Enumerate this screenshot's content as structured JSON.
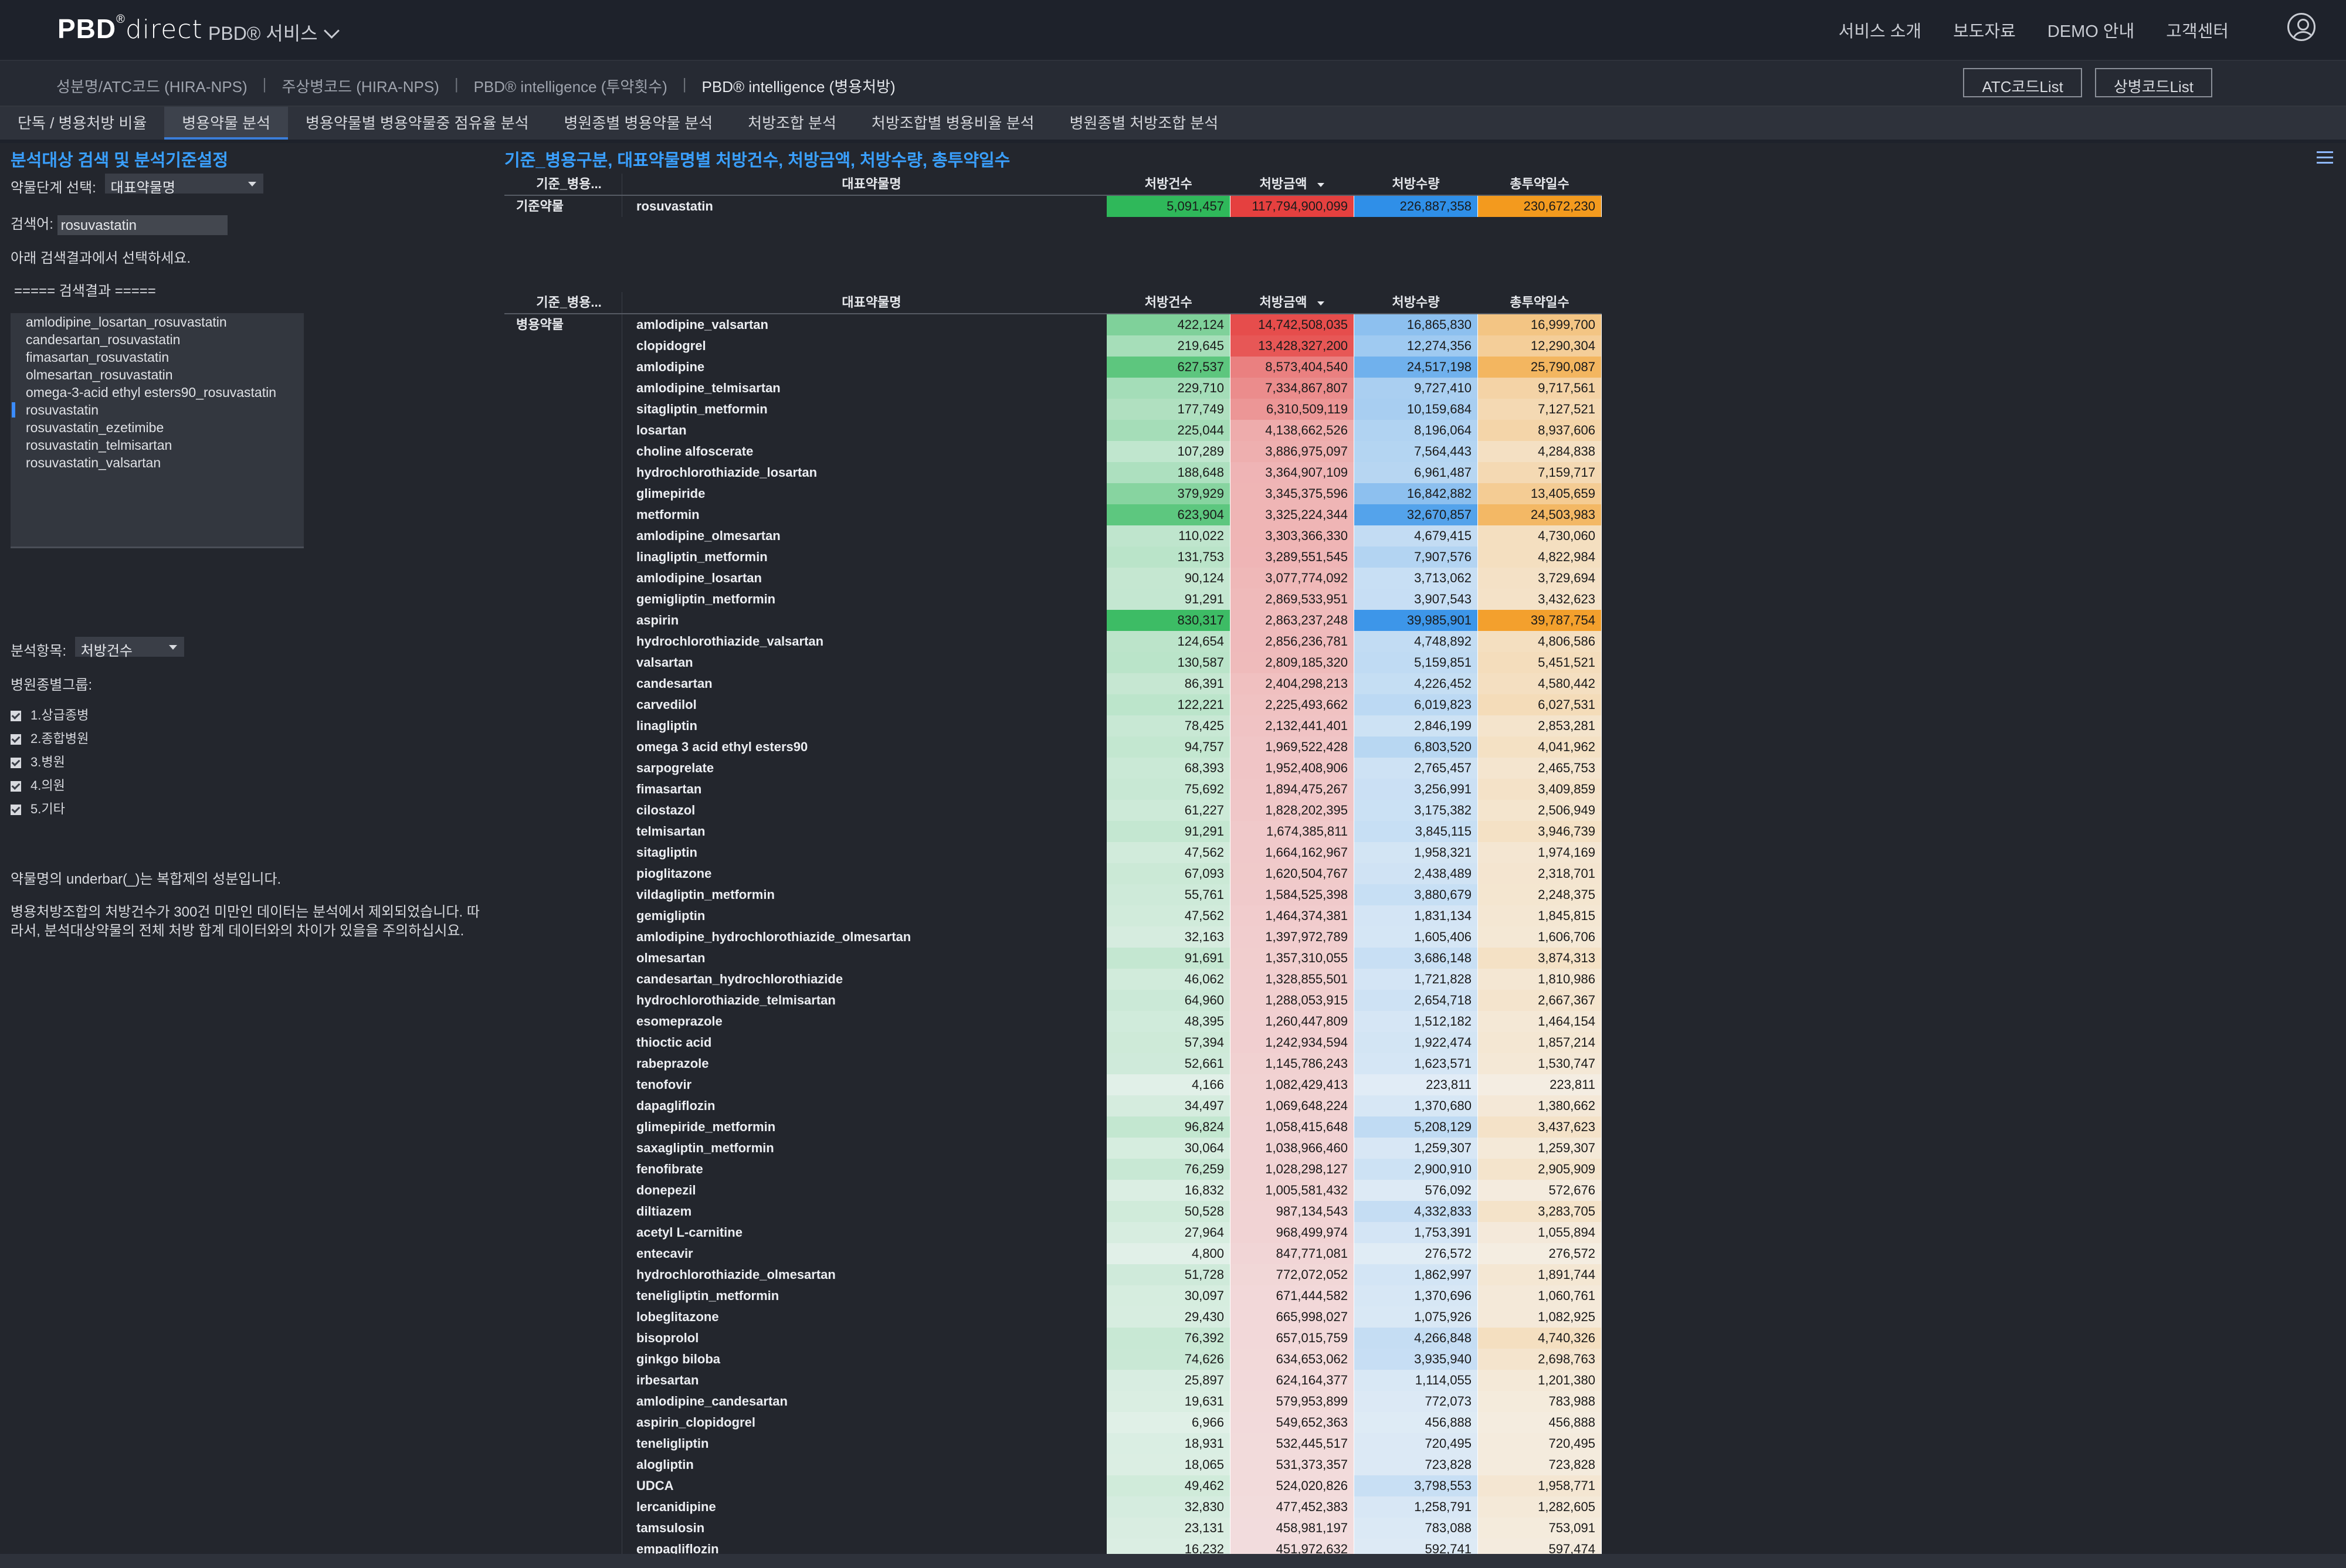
{
  "topbar": {
    "logo_brand": "PBD",
    "logo_reg": "®",
    "logo_direct": "direct",
    "service_menu": "PBD® 서비스",
    "nav": [
      "서비스 소개",
      "보도자료",
      "DEMO 안내",
      "고객센터"
    ]
  },
  "subnav": {
    "crumbs": [
      "성분명/ATC코드 (HIRA-NPS)",
      "주상병코드 (HIRA-NPS)",
      "PBD® intelligence (투약횟수)",
      "PBD® intelligence (병용처방)"
    ],
    "buttons": [
      "ATC코드List",
      "상병코드List"
    ]
  },
  "tabs": [
    "단독 / 병용처방 비율",
    "병용약물 분석",
    "병용약물별 병용약물중 점유율 분석",
    "병원종별 병용약물 분석",
    "처방조합 분석",
    "처방조합별 병용비율 분석",
    "병원종별 처방조합 분석"
  ],
  "left": {
    "title": "분석대상 검색 및 분석기준설정",
    "stage_label": "약물단계 선택:",
    "stage_value": "대표약물명",
    "search_label": "검색어:",
    "search_value": "rosuvastatin",
    "hint": "아래 검색결과에서 선택하세요.",
    "result_header": "===== 검색결과 =====",
    "results": [
      "amlodipine_losartan_rosuvastatin",
      "candesartan_rosuvastatin",
      "fimasartan_rosuvastatin",
      "olmesartan_rosuvastatin",
      "omega-3-acid ethyl esters90_rosuvastatin",
      "rosuvastatin",
      "rosuvastatin_ezetimibe",
      "rosuvastatin_telmisartan",
      "rosuvastatin_valsartan"
    ],
    "selected_result": 5,
    "analysis_label": "분석항목:",
    "analysis_value": "처방건수",
    "hospital_label": "병원종별그룹:",
    "hospital_groups": [
      "1.상급종병",
      "2.종합병원",
      "3.병원",
      "4.의원",
      "5.기타"
    ],
    "note1": "약물명의 underbar(_)는 복합제의 성분입니다.",
    "note2": "병용처방조합의 처방건수가 300건 미만인 데이터는 분석에서 제외되었습니다. 따라서, 분석대상약물의 전체 처방 합계 데이터와의 차이가 있을을 주의하십시요."
  },
  "main": {
    "title": "기준_병용구분, 대표약물명별 처방건수, 처방금액, 처방수량, 총투약일수",
    "columns": [
      "기준_병용...",
      "대표약물명",
      "처방건수",
      "처방금액",
      "처방수량",
      "총투약일수"
    ],
    "colors": {
      "count": "#2fb85a",
      "amount": "#e5403f",
      "qty": "#2f8fe8",
      "days": "#f39a1e"
    },
    "base_group": "기준약물",
    "base_rows": [
      {
        "drug": "rosuvastatin",
        "count": "5,091,457",
        "amount": "117,794,900,099",
        "qty": "226,887,358",
        "days": "230,672,230"
      }
    ],
    "combo_group": "병용약물",
    "combo_rows": [
      [
        "amlodipine_valsartan",
        "422,124",
        "14,742,508,035",
        "16,865,830",
        "16,999,700"
      ],
      [
        "clopidogrel",
        "219,645",
        "13,428,327,200",
        "12,274,356",
        "12,290,304"
      ],
      [
        "amlodipine",
        "627,537",
        "8,573,404,540",
        "24,517,198",
        "25,790,087"
      ],
      [
        "amlodipine_telmisartan",
        "229,710",
        "7,334,867,807",
        "9,727,410",
        "9,717,561"
      ],
      [
        "sitagliptin_metformin",
        "177,749",
        "6,310,509,119",
        "10,159,684",
        "7,127,521"
      ],
      [
        "losartan",
        "225,044",
        "4,138,662,526",
        "8,196,064",
        "8,937,606"
      ],
      [
        "choline alfoscerate",
        "107,289",
        "3,886,975,097",
        "7,564,443",
        "4,284,838"
      ],
      [
        "hydrochlorothiazide_losartan",
        "188,648",
        "3,364,907,109",
        "6,961,487",
        "7,159,717"
      ],
      [
        "glimepiride",
        "379,929",
        "3,345,375,596",
        "16,842,882",
        "13,405,659"
      ],
      [
        "metformin",
        "623,904",
        "3,325,224,344",
        "32,670,857",
        "24,503,983"
      ],
      [
        "amlodipine_olmesartan",
        "110,022",
        "3,303,366,330",
        "4,679,415",
        "4,730,060"
      ],
      [
        "linagliptin_metformin",
        "131,753",
        "3,289,551,545",
        "7,907,576",
        "4,822,984"
      ],
      [
        "amlodipine_losartan",
        "90,124",
        "3,077,774,092",
        "3,713,062",
        "3,729,694"
      ],
      [
        "gemigliptin_metformin",
        "91,291",
        "2,869,533,951",
        "3,907,543",
        "3,432,623"
      ],
      [
        "aspirin",
        "830,317",
        "2,863,237,248",
        "39,985,901",
        "39,787,754"
      ],
      [
        "hydrochlorothiazide_valsartan",
        "124,654",
        "2,856,236,781",
        "4,748,892",
        "4,806,586"
      ],
      [
        "valsartan",
        "130,587",
        "2,809,185,320",
        "5,159,851",
        "5,451,521"
      ],
      [
        "candesartan",
        "86,391",
        "2,404,298,213",
        "4,226,452",
        "4,580,442"
      ],
      [
        "carvedilol",
        "122,221",
        "2,225,493,662",
        "6,019,823",
        "6,027,531"
      ],
      [
        "linagliptin",
        "78,425",
        "2,132,441,401",
        "2,846,199",
        "2,853,281"
      ],
      [
        "omega 3 acid ethyl esters90",
        "94,757",
        "1,969,522,428",
        "6,803,520",
        "4,041,962"
      ],
      [
        "sarpogrelate",
        "68,393",
        "1,952,408,906",
        "2,765,457",
        "2,465,753"
      ],
      [
        "fimasartan",
        "75,692",
        "1,894,475,267",
        "3,256,991",
        "3,409,859"
      ],
      [
        "cilostazol",
        "61,227",
        "1,828,202,395",
        "3,175,382",
        "2,506,949"
      ],
      [
        "telmisartan",
        "91,291",
        "1,674,385,811",
        "3,845,115",
        "3,946,739"
      ],
      [
        "sitagliptin",
        "47,562",
        "1,664,162,967",
        "1,958,321",
        "1,974,169"
      ],
      [
        "pioglitazone",
        "67,093",
        "1,620,504,767",
        "2,438,489",
        "2,318,701"
      ],
      [
        "vildagliptin_metformin",
        "55,761",
        "1,584,525,398",
        "3,880,679",
        "2,248,375"
      ],
      [
        "gemigliptin",
        "47,562",
        "1,464,374,381",
        "1,831,134",
        "1,845,815"
      ],
      [
        "amlodipine_hydrochlorothiazide_olmesartan",
        "32,163",
        "1,397,972,789",
        "1,605,406",
        "1,606,706"
      ],
      [
        "olmesartan",
        "91,691",
        "1,357,310,055",
        "3,686,148",
        "3,874,313"
      ],
      [
        "candesartan_hydrochlorothiazide",
        "46,062",
        "1,328,855,501",
        "1,721,828",
        "1,810,986"
      ],
      [
        "hydrochlorothiazide_telmisartan",
        "64,960",
        "1,288,053,915",
        "2,654,718",
        "2,667,367"
      ],
      [
        "esomeprazole",
        "48,395",
        "1,260,447,809",
        "1,512,182",
        "1,464,154"
      ],
      [
        "thioctic acid",
        "57,394",
        "1,242,934,594",
        "1,922,474",
        "1,857,214"
      ],
      [
        "rabeprazole",
        "52,661",
        "1,145,786,243",
        "1,623,571",
        "1,530,747"
      ],
      [
        "tenofovir",
        "4,166",
        "1,082,429,413",
        "223,811",
        "223,811"
      ],
      [
        "dapagliflozin",
        "34,497",
        "1,069,648,224",
        "1,370,680",
        "1,380,662"
      ],
      [
        "glimepiride_metformin",
        "96,824",
        "1,058,415,648",
        "5,208,129",
        "3,437,623"
      ],
      [
        "saxagliptin_metformin",
        "30,064",
        "1,038,966,460",
        "1,259,307",
        "1,259,307"
      ],
      [
        "fenofibrate",
        "76,259",
        "1,028,298,127",
        "2,900,910",
        "2,905,909"
      ],
      [
        "donepezil",
        "16,832",
        "1,005,581,432",
        "576,092",
        "572,676"
      ],
      [
        "diltiazem",
        "50,528",
        "987,134,543",
        "4,332,833",
        "3,283,705"
      ],
      [
        "acetyl L-carnitine",
        "27,964",
        "968,499,974",
        "1,753,391",
        "1,055,894"
      ],
      [
        "entecavir",
        "4,800",
        "847,771,081",
        "276,572",
        "276,572"
      ],
      [
        "hydrochlorothiazide_olmesartan",
        "51,728",
        "772,072,052",
        "1,862,997",
        "1,891,744"
      ],
      [
        "teneligliptin_metformin",
        "30,097",
        "671,444,582",
        "1,370,696",
        "1,060,761"
      ],
      [
        "lobeglitazone",
        "29,430",
        "665,998,027",
        "1,075,926",
        "1,082,925"
      ],
      [
        "bisoprolol",
        "76,392",
        "657,015,759",
        "4,266,848",
        "4,740,326"
      ],
      [
        "ginkgo biloba",
        "74,626",
        "634,653,062",
        "3,935,940",
        "2,698,763"
      ],
      [
        "irbesartan",
        "25,897",
        "624,164,377",
        "1,114,055",
        "1,201,380"
      ],
      [
        "amlodipine_candesartan",
        "19,631",
        "579,953,899",
        "772,073",
        "783,988"
      ],
      [
        "aspirin_clopidogrel",
        "6,966",
        "549,652,363",
        "456,888",
        "456,888"
      ],
      [
        "teneligliptin",
        "18,931",
        "532,445,517",
        "720,495",
        "720,495"
      ],
      [
        "alogliptin",
        "18,065",
        "531,373,357",
        "723,828",
        "723,828"
      ],
      [
        "UDCA",
        "49,462",
        "524,020,826",
        "3,798,553",
        "1,958,771"
      ],
      [
        "lercanidipine",
        "32,830",
        "477,452,383",
        "1,258,791",
        "1,282,605"
      ],
      [
        "tamsulosin",
        "23,131",
        "458,981,197",
        "783,088",
        "753,091"
      ],
      [
        "empagliflozin",
        "16,232",
        "451,972,632",
        "592,741",
        "597,474"
      ]
    ]
  }
}
